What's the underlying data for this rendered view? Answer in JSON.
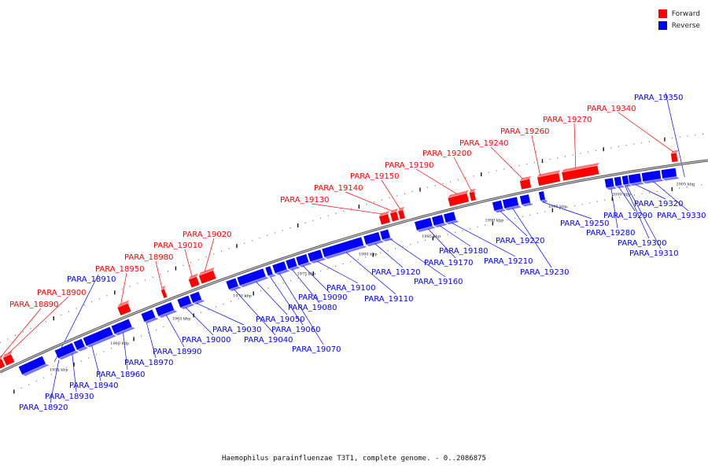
{
  "caption": "Haemophilus parainfluenzae T3T1, complete genome. - 0..2086875",
  "legend": [
    {
      "label": "Forward",
      "color": "#ff0000"
    },
    {
      "label": "Reverse",
      "color": "#0000ff"
    }
  ],
  "colors": {
    "forward": "#ff0000",
    "reverse": "#0000ff",
    "axis": "#888888"
  },
  "axis_ticks": [
    "1955 kbp",
    "1960 kbp",
    "1965 kbp",
    "1970 kbp",
    "1975 kbp",
    "1980 kbp",
    "1985 kbp",
    "1990 kbp",
    "1995 kbp",
    "2000 kbp",
    "2005 kbp"
  ],
  "forward_genes": [
    "PARA_18890",
    "PARA_18900",
    "PARA_18950",
    "PARA_18980",
    "PARA_19010",
    "PARA_19020",
    "PARA_19130",
    "PARA_19140",
    "PARA_19150",
    "PARA_19190",
    "PARA_19200",
    "PARA_19240",
    "PARA_19260",
    "PARA_19270",
    "PARA_19340"
  ],
  "reverse_genes": [
    "PARA_18910",
    "PARA_18920",
    "PARA_18930",
    "PARA_18940",
    "PARA_18960",
    "PARA_18970",
    "PARA_18990",
    "PARA_19000",
    "PARA_19030",
    "PARA_19040",
    "PARA_19050",
    "PARA_19060",
    "PARA_19070",
    "PARA_19080",
    "PARA_19090",
    "PARA_19100",
    "PARA_19110",
    "PARA_19120",
    "PARA_19160",
    "PARA_19170",
    "PARA_19180",
    "PARA_19210",
    "PARA_19220",
    "PARA_19230",
    "PARA_19250",
    "PARA_19280",
    "PARA_19290",
    "PARA_19300",
    "PARA_19310",
    "PARA_19320",
    "PARA_19330",
    "PARA_19350"
  ]
}
